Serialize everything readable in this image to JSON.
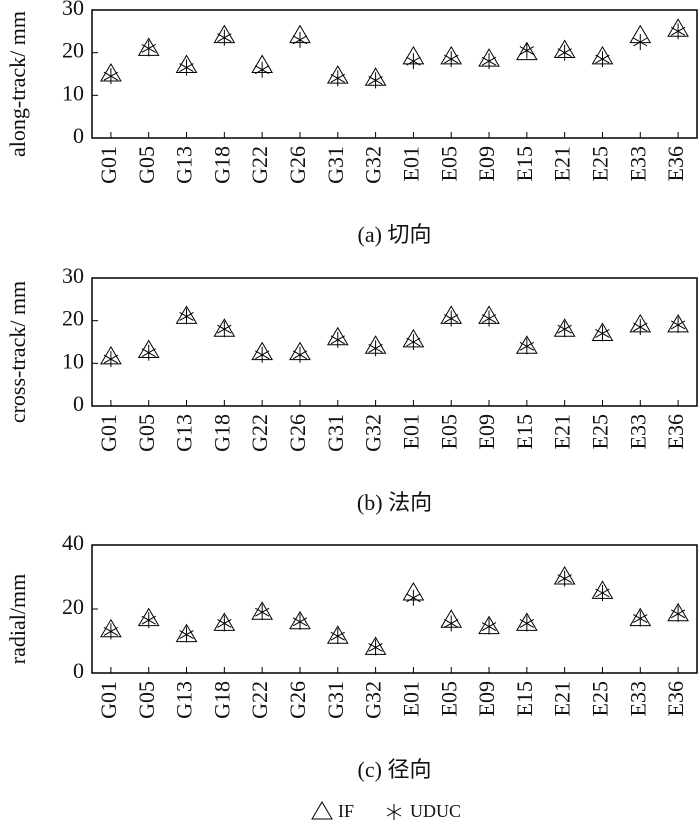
{
  "chart_data": [
    {
      "type": "scatter",
      "ylabel": "along-track/ mm",
      "caption": "(a) 切向",
      "categories": [
        "G01",
        "G05",
        "G13",
        "G18",
        "G22",
        "G26",
        "G31",
        "G32",
        "E01",
        "E05",
        "E09",
        "E15",
        "E21",
        "E25",
        "E33",
        "E36"
      ],
      "series": [
        {
          "name": "IF",
          "color": "#000000",
          "marker": "triangle",
          "values": [
            15,
            21,
            17,
            24,
            17,
            24,
            14.5,
            14,
            19,
            19,
            18.5,
            20,
            20.5,
            19,
            24,
            25.5
          ]
        },
        {
          "name": "UDUC",
          "color": "#000000",
          "marker": "asterisk",
          "values": [
            14.5,
            21,
            16.5,
            23.5,
            16,
            23,
            14,
            13.5,
            18,
            18.5,
            18,
            20.5,
            20,
            18.5,
            22.5,
            25
          ]
        }
      ],
      "ylim": [
        0,
        30
      ],
      "yticks": [
        0,
        10,
        20,
        30
      ]
    },
    {
      "type": "scatter",
      "ylabel": "cross-track/ mm",
      "caption": "(b) 法向",
      "categories": [
        "G01",
        "G05",
        "G13",
        "G18",
        "G22",
        "G26",
        "G31",
        "G32",
        "E01",
        "E05",
        "E09",
        "E15",
        "E21",
        "E25",
        "E33",
        "E36"
      ],
      "series": [
        {
          "name": "IF",
          "color": "#000000",
          "marker": "triangle",
          "values": [
            11.5,
            13,
            21,
            18,
            12.5,
            12.5,
            16,
            14,
            15.5,
            21,
            21,
            14,
            18,
            17,
            19,
            19
          ]
        },
        {
          "name": "UDUC",
          "color": "#000000",
          "marker": "asterisk",
          "values": [
            11,
            12.5,
            21,
            18,
            12,
            12,
            15.5,
            13.5,
            15,
            20.5,
            20.5,
            14,
            18,
            17,
            18.5,
            19
          ]
        }
      ],
      "ylim": [
        0,
        30
      ],
      "yticks": [
        0,
        10,
        20,
        30
      ]
    },
    {
      "type": "scatter",
      "ylabel": "radial/mm",
      "caption": "(c) 径向",
      "categories": [
        "G01",
        "G05",
        "G13",
        "G18",
        "G22",
        "G26",
        "G31",
        "G32",
        "E01",
        "E05",
        "E09",
        "E15",
        "E21",
        "E25",
        "E33",
        "E36"
      ],
      "series": [
        {
          "name": "IF",
          "color": "#000000",
          "marker": "triangle",
          "values": [
            13.5,
            17,
            12,
            15.5,
            19,
            16,
            11.5,
            8,
            25,
            16.5,
            14.5,
            15.5,
            30,
            25.5,
            17,
            18.5
          ]
        },
        {
          "name": "UDUC",
          "color": "#000000",
          "marker": "asterisk",
          "values": [
            13,
            16.5,
            12,
            15.5,
            19,
            16,
            11.5,
            8,
            23.5,
            15.5,
            14.5,
            15.5,
            29.5,
            25,
            17,
            18.5
          ]
        }
      ],
      "ylim": [
        0,
        40
      ],
      "yticks": [
        0,
        20,
        40
      ]
    }
  ]
}
